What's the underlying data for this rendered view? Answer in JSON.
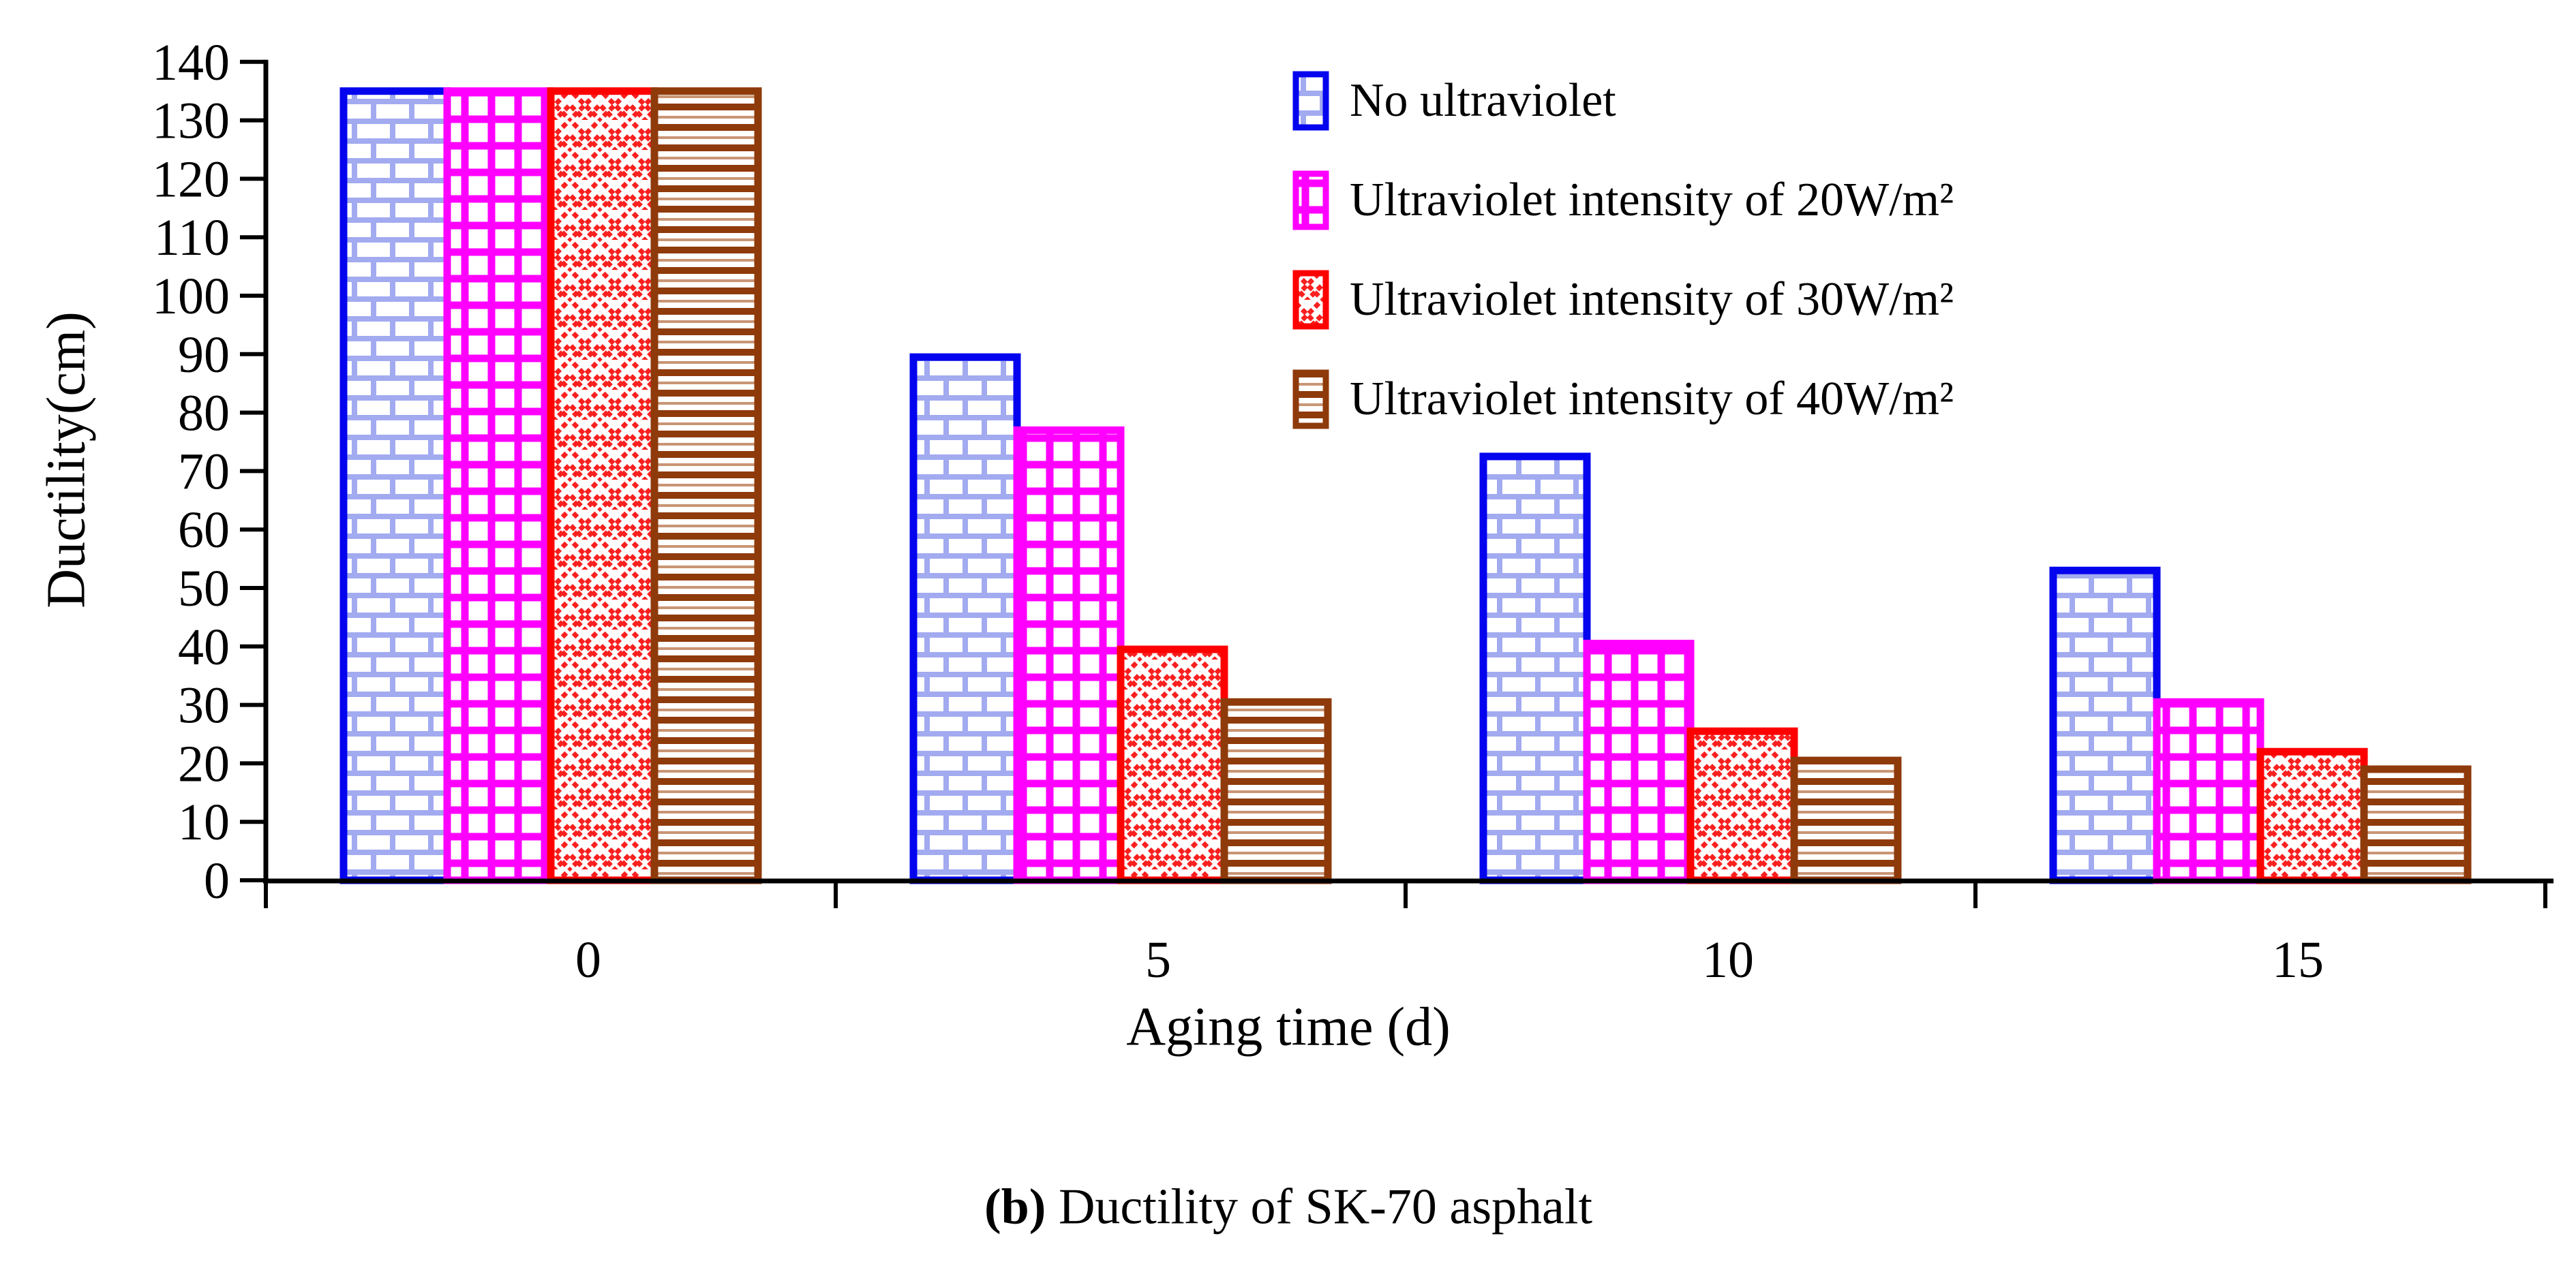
{
  "figure": {
    "caption_bold": "(b)",
    "caption_text": " Ductility of SK-70 asphalt"
  },
  "chart_data": {
    "type": "bar",
    "title": "",
    "xlabel": "Aging time (d)",
    "ylabel": "Ductility(cm)",
    "categories": [
      "0",
      "5",
      "10",
      "15"
    ],
    "ylim": [
      0,
      140
    ],
    "yticks": [
      0,
      10,
      20,
      30,
      40,
      50,
      60,
      70,
      80,
      90,
      100,
      110,
      120,
      130,
      140
    ],
    "grid": false,
    "legend_position": "top-center",
    "axis_color": "#000000",
    "series": [
      {
        "name": "No ultraviolet",
        "border_color": "#0404ee",
        "pattern": "brick",
        "pattern_color": "#a2aaf0",
        "values": [
          135,
          89.5,
          72.5,
          53
        ]
      },
      {
        "name": "Ultraviolet intensity of 20W/m²",
        "border_color": "#ff00ff",
        "pattern": "grid",
        "pattern_color": "#ff00ff",
        "values": [
          135,
          77,
          40.5,
          30.5
        ]
      },
      {
        "name": "Ultraviolet intensity of 30W/m²",
        "border_color": "#ff0000",
        "pattern": "diagonal-crosshatch",
        "pattern_color": "#f92020",
        "values": [
          135,
          39.5,
          25.5,
          22
        ]
      },
      {
        "name": "Ultraviolet intensity of 40W/m²",
        "border_color": "#8f3a0a",
        "pattern": "horizontal-lines",
        "pattern_color": "#8f3a0a",
        "values": [
          135,
          30.5,
          20.5,
          19
        ]
      }
    ]
  }
}
